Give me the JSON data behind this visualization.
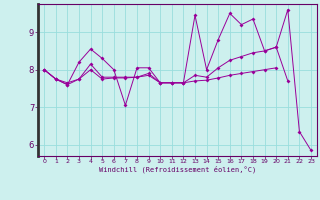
{
  "xlabel": "Windchill (Refroidissement éolien,°C)",
  "bg_color": "#cdf0ee",
  "line_color": "#990099",
  "grid_color": "#99dddd",
  "spine_color": "#660066",
  "x_data": [
    0,
    1,
    2,
    3,
    4,
    5,
    6,
    7,
    8,
    9,
    10,
    11,
    12,
    13,
    14,
    15,
    16,
    17,
    18,
    19,
    20,
    21,
    22,
    23
  ],
  "line1": [
    8.0,
    7.75,
    7.6,
    8.2,
    8.55,
    8.3,
    8.0,
    7.05,
    8.05,
    8.05,
    7.65,
    7.65,
    7.65,
    9.45,
    8.0,
    8.8,
    9.5,
    9.2,
    9.35,
    8.5,
    8.6,
    9.6,
    6.35,
    5.85
  ],
  "line2": [
    8.0,
    7.75,
    7.6,
    7.75,
    8.15,
    7.8,
    7.8,
    7.8,
    7.8,
    7.9,
    7.65,
    7.65,
    7.65,
    7.85,
    7.8,
    8.05,
    8.25,
    8.35,
    8.45,
    8.5,
    8.6,
    7.7,
    null,
    null
  ],
  "line3": [
    8.0,
    7.75,
    7.65,
    7.75,
    8.0,
    7.75,
    7.78,
    7.78,
    7.8,
    7.85,
    7.65,
    7.65,
    7.65,
    7.7,
    7.72,
    7.78,
    7.85,
    7.9,
    7.95,
    8.0,
    8.05,
    null,
    null,
    null
  ],
  "ylim": [
    5.7,
    9.75
  ],
  "yticks": [
    6,
    7,
    8,
    9
  ],
  "xlim": [
    -0.5,
    23.5
  ],
  "xticks": [
    0,
    1,
    2,
    3,
    4,
    5,
    6,
    7,
    8,
    9,
    10,
    11,
    12,
    13,
    14,
    15,
    16,
    17,
    18,
    19,
    20,
    21,
    22,
    23
  ]
}
